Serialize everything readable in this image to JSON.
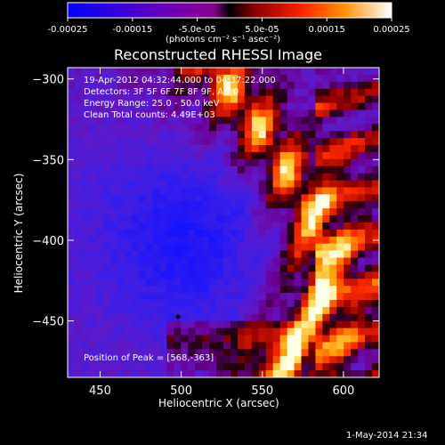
{
  "colorbar": {
    "ticks": [
      "-0.00025",
      "-0.00015",
      "-5.0e-05",
      "5.0e-05",
      "0.00015",
      "0.00025"
    ],
    "units_label": "(photons cm⁻² s⁻¹ asec⁻²)",
    "range": [
      -0.00025,
      0.00025
    ]
  },
  "chart_data": {
    "type": "heatmap",
    "title": "Reconstructed RHESSI Image",
    "xlabel": "Heliocentric X (arcsec)",
    "ylabel": "Heliocentric Y (arcsec)",
    "xlim": [
      430,
      622
    ],
    "ylim": [
      -485,
      -293
    ],
    "x_ticks": [
      450,
      500,
      550,
      600
    ],
    "y_ticks": [
      -300,
      -350,
      -400,
      -450
    ],
    "annotations": [
      "19-Apr-2012 04:32:44.000 to 04:37:22.000",
      "Detectors: 3F 5F 6F 7F 8F 9F, Att 0",
      "Energy Range: 25.0 - 50.0 keV",
      "Clean     Total counts: 4.49E+03",
      "Position of Peak = [568,-363]"
    ],
    "peak_position": [
      568,
      -363
    ]
  },
  "footer": {
    "timestamp": "1-May-2014 21:34"
  }
}
